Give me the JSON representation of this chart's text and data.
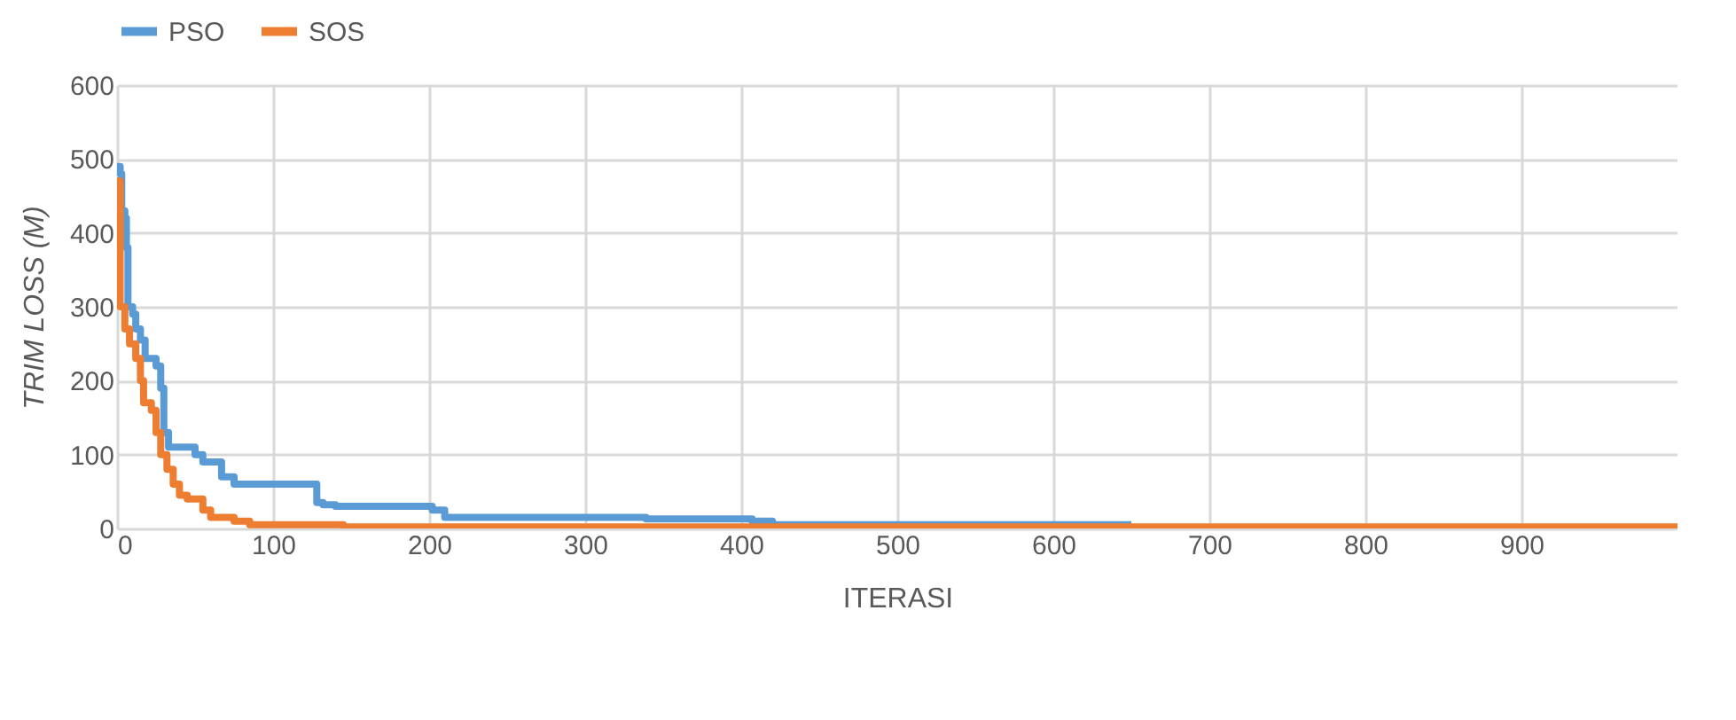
{
  "chart_data": {
    "type": "step",
    "xlabel": "ITERASI",
    "ylabel": "TRIM LOSS (M)",
    "xlim": [
      0,
      1000
    ],
    "xticks": [
      0,
      100,
      200,
      300,
      400,
      500,
      600,
      700,
      800,
      900
    ],
    "ylim": [
      0,
      600
    ],
    "yticks": [
      0,
      100,
      200,
      300,
      400,
      500,
      600
    ],
    "grid": true,
    "legend": "top",
    "series": [
      {
        "name": "PSO",
        "color": "#5b9bd5",
        "x": [
          0,
          2,
          3,
          5,
          6,
          7,
          10,
          12,
          15,
          18,
          25,
          28,
          30,
          33,
          45,
          50,
          55,
          63,
          67,
          75,
          128,
          132,
          140,
          202,
          210,
          339,
          407,
          420,
          650
        ],
        "values": [
          490,
          480,
          430,
          420,
          380,
          300,
          290,
          270,
          255,
          230,
          220,
          190,
          130,
          110,
          110,
          100,
          90,
          90,
          70,
          60,
          35,
          32,
          30,
          25,
          15,
          13,
          10,
          5,
          5
        ]
      },
      {
        "name": "SOS",
        "color": "#ed7d31",
        "x": [
          0,
          2,
          5,
          8,
          12,
          15,
          17,
          22,
          25,
          28,
          32,
          36,
          40,
          45,
          55,
          60,
          75,
          85,
          145,
          1000
        ],
        "values": [
          470,
          300,
          270,
          250,
          230,
          200,
          170,
          160,
          130,
          100,
          80,
          60,
          45,
          40,
          25,
          15,
          10,
          5,
          2,
          2
        ]
      }
    ]
  }
}
